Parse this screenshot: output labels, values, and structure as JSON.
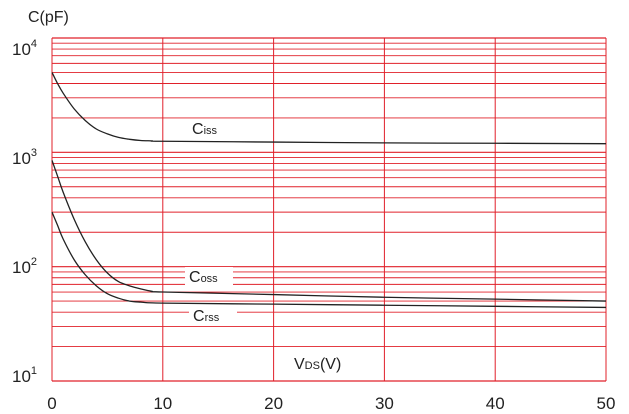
{
  "chart_data": {
    "type": "line",
    "ylabel": "C(pF)",
    "xlabel": {
      "main": "V",
      "sub": "DS",
      "unit": "(V)"
    },
    "xlim": [
      0,
      50
    ],
    "ylim": [
      10,
      10000
    ],
    "y_scale": "log",
    "grid": true,
    "grid_color": "#e0202a",
    "line_color": "#222222",
    "x_ticks": [
      0,
      10,
      20,
      30,
      40,
      50
    ],
    "y_ticks": [
      {
        "base": "10",
        "exp": "1",
        "value": 10
      },
      {
        "base": "10",
        "exp": "2",
        "value": 100
      },
      {
        "base": "10",
        "exp": "3",
        "value": 1000
      },
      {
        "base": "10",
        "exp": "4",
        "value": 10000
      }
    ],
    "series": [
      {
        "name": "Ciss",
        "label_main": "C",
        "label_sub": "iss",
        "points": [
          [
            0,
            5000
          ],
          [
            0.5,
            4000
          ],
          [
            1,
            3300
          ],
          [
            2,
            2400
          ],
          [
            3,
            1900
          ],
          [
            4,
            1600
          ],
          [
            5,
            1450
          ],
          [
            6,
            1350
          ],
          [
            7,
            1300
          ],
          [
            8,
            1270
          ],
          [
            9,
            1260
          ],
          [
            10,
            1250
          ],
          [
            20,
            1230
          ],
          [
            30,
            1210
          ],
          [
            40,
            1200
          ],
          [
            50,
            1190
          ]
        ]
      },
      {
        "name": "Coss",
        "label_main": "C",
        "label_sub": "oss",
        "points": [
          [
            0,
            850
          ],
          [
            0.5,
            620
          ],
          [
            1,
            450
          ],
          [
            2,
            260
          ],
          [
            3,
            165
          ],
          [
            4,
            115
          ],
          [
            5,
            88
          ],
          [
            6,
            74
          ],
          [
            7,
            68
          ],
          [
            8,
            64
          ],
          [
            9,
            61
          ],
          [
            10,
            60
          ],
          [
            20,
            57
          ],
          [
            30,
            54
          ],
          [
            40,
            52
          ],
          [
            50,
            50
          ]
        ]
      },
      {
        "name": "Crss",
        "label_main": "C",
        "label_sub": "rss",
        "points": [
          [
            0,
            300
          ],
          [
            0.5,
            230
          ],
          [
            1,
            175
          ],
          [
            2,
            115
          ],
          [
            3,
            85
          ],
          [
            4,
            68
          ],
          [
            5,
            58
          ],
          [
            6,
            53
          ],
          [
            7,
            50
          ],
          [
            8,
            49
          ],
          [
            10,
            48
          ],
          [
            20,
            47
          ],
          [
            30,
            46
          ],
          [
            40,
            45
          ],
          [
            50,
            44
          ]
        ]
      }
    ]
  }
}
